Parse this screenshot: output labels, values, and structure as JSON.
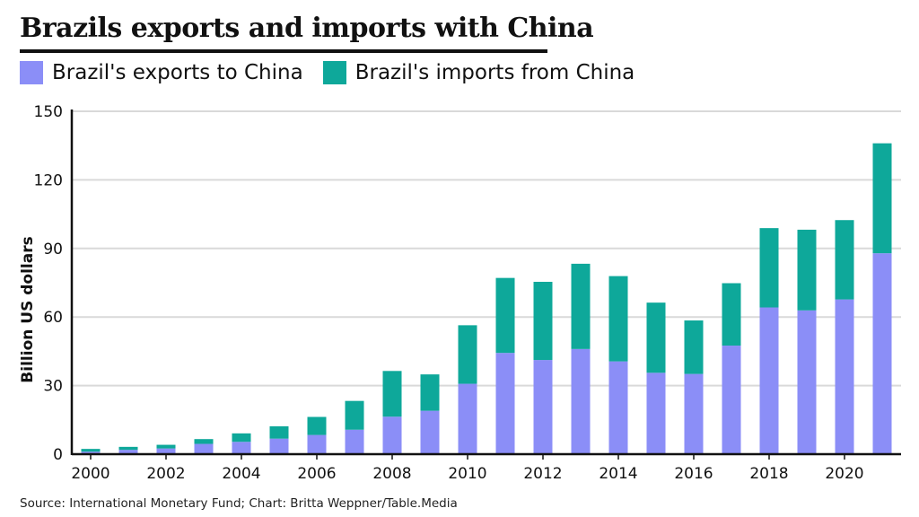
{
  "title": "Brazils exports and imports with China",
  "source": "Source: International Monetary Fund; Chart: Britta Weppner/Table.Media",
  "colors": {
    "exports": "#8b8ef7",
    "imports": "#0ea89a",
    "grid": "#d9d9d9",
    "axis": "#111111"
  },
  "chart_data": {
    "type": "bar",
    "stacked": true,
    "ylabel": "Billion US dollars",
    "xlabel": "",
    "ylim": [
      0,
      150
    ],
    "yticks": [
      0,
      30,
      60,
      90,
      120,
      150
    ],
    "xtick_labels": [
      "2000",
      "2002",
      "2004",
      "2006",
      "2008",
      "2010",
      "2012",
      "2014",
      "2016",
      "2018",
      "2020"
    ],
    "grid": true,
    "legend_position": "top-left",
    "categories": [
      2000,
      2001,
      2002,
      2003,
      2004,
      2005,
      2006,
      2007,
      2008,
      2009,
      2010,
      2011,
      2012,
      2013,
      2014,
      2015,
      2016,
      2017,
      2018,
      2019,
      2020,
      2021
    ],
    "series": [
      {
        "name": "Brazil's exports to China",
        "values": [
          1.1,
          1.9,
          2.5,
          4.5,
          5.4,
          6.8,
          8.4,
          10.7,
          16.4,
          19.0,
          30.8,
          44.3,
          41.2,
          46.0,
          40.6,
          35.6,
          35.1,
          47.5,
          64.2,
          62.9,
          67.7,
          87.9
        ]
      },
      {
        "name": "Brazil's imports from China",
        "values": [
          1.2,
          1.3,
          1.6,
          2.1,
          3.7,
          5.4,
          7.9,
          12.6,
          20.0,
          15.9,
          25.6,
          32.8,
          34.2,
          37.3,
          37.3,
          30.7,
          23.4,
          27.3,
          34.7,
          35.3,
          34.7,
          48.1
        ]
      }
    ]
  }
}
